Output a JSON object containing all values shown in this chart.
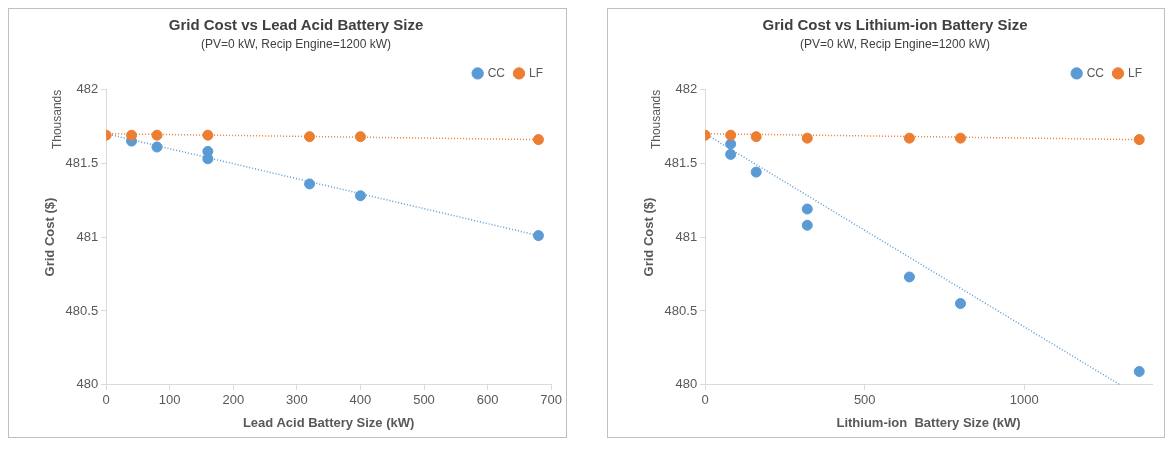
{
  "chart_data": [
    {
      "type": "scatter",
      "title": "Grid Cost vs Lead Acid Battery Size",
      "subtitle": "(PV=0 kW, Recip Engine=1200 kW)",
      "xlabel": "Lead Acid Battery Size (kW)",
      "ylabel": "Grid Cost ($)",
      "annotations": [
        "Thousands"
      ],
      "legend": "top right",
      "xlim": [
        0,
        700
      ],
      "xticks": [
        0,
        100,
        200,
        300,
        400,
        500,
        600,
        700
      ],
      "ylim": [
        480,
        482
      ],
      "yticks": [
        480,
        480.5,
        481,
        481.5,
        482
      ],
      "series": [
        {
          "name": "CC",
          "marker": "circle",
          "color": "#5b9bd5",
          "x": [
            40,
            80,
            160,
            160,
            320,
            400,
            680
          ],
          "values": [
            481.65,
            481.61,
            481.58,
            481.53,
            481.36,
            481.28,
            481.01
          ]
        },
        {
          "name": "LF",
          "marker": "circle",
          "color": "#ed7d31",
          "x": [
            0,
            40,
            80,
            160,
            320,
            400,
            680
          ],
          "values": [
            481.69,
            481.69,
            481.69,
            481.69,
            481.68,
            481.68,
            481.66
          ]
        },
        {
          "type": "line",
          "line_style": "dotted",
          "color": "#5b9bd5",
          "x": [
            0,
            680
          ],
          "values": [
            481.7,
            481.01
          ]
        },
        {
          "type": "line",
          "line_style": "dotted",
          "color": "#ed7d31",
          "x": [
            0,
            680
          ],
          "values": [
            481.7,
            481.66
          ]
        }
      ]
    },
    {
      "type": "scatter",
      "title": "Grid Cost vs Lithium-ion Battery Size",
      "subtitle": "(PV=0 kW, Recip Engine=1200 kW)",
      "xlabel": "Lithium-ion  Battery Size (kW)",
      "ylabel": "Grid Cost ($)",
      "annotations": [
        "Thousands"
      ],
      "legend": "top right",
      "xlim": [
        0,
        1400
      ],
      "xticks": [
        0,
        500,
        1000
      ],
      "ylim": [
        480,
        482
      ],
      "yticks": [
        480,
        480.5,
        481,
        481.5,
        482
      ],
      "series": [
        {
          "name": "CC",
          "marker": "circle",
          "color": "#5b9bd5",
          "x": [
            80,
            80,
            160,
            320,
            320,
            640,
            800,
            1360
          ],
          "values": [
            481.63,
            481.56,
            481.44,
            481.19,
            481.08,
            480.73,
            480.55,
            480.09
          ]
        },
        {
          "name": "LF",
          "marker": "circle",
          "color": "#ed7d31",
          "x": [
            0,
            80,
            160,
            320,
            640,
            800,
            1360
          ],
          "values": [
            481.69,
            481.69,
            481.68,
            481.67,
            481.67,
            481.67,
            481.66
          ]
        },
        {
          "type": "line",
          "line_style": "dotted",
          "color": "#5b9bd5",
          "x": [
            0,
            1300
          ],
          "values": [
            481.7,
            480
          ]
        },
        {
          "type": "line",
          "line_style": "dotted",
          "color": "#ed7d31",
          "x": [
            0,
            1360
          ],
          "values": [
            481.7,
            481.66
          ]
        }
      ]
    }
  ]
}
